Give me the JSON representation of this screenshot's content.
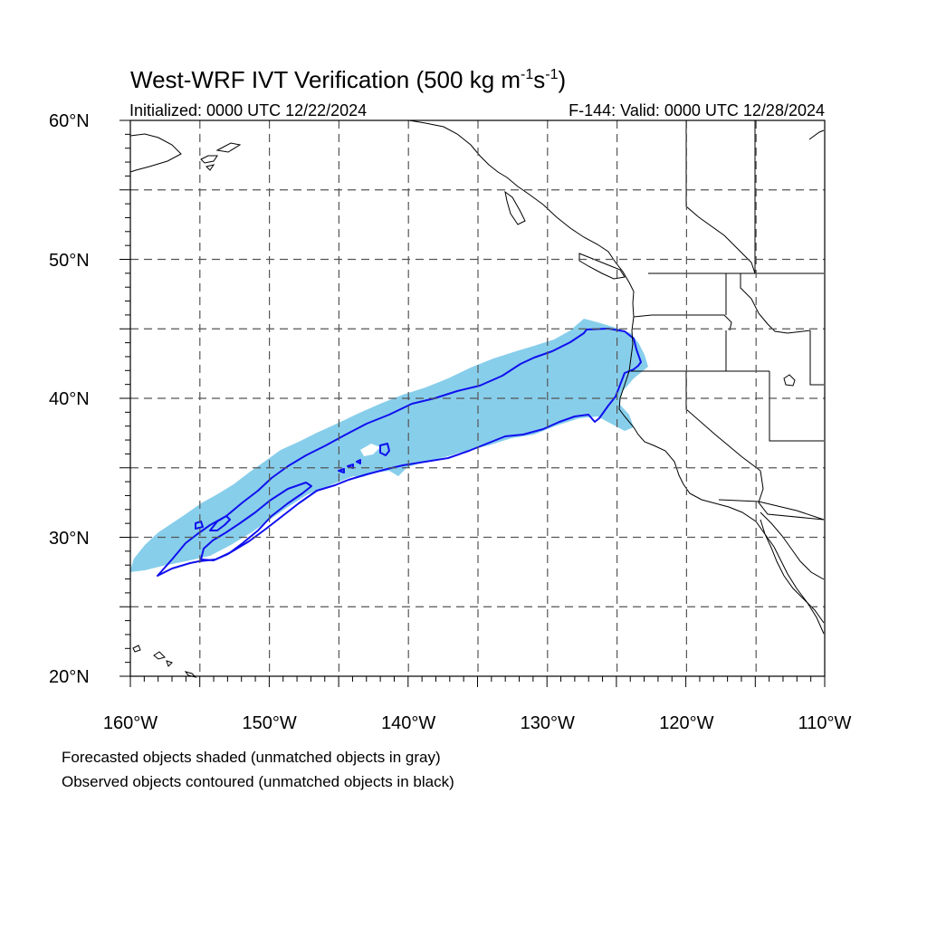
{
  "title": {
    "main": "West-WRF IVT Verification (500 kg m",
    "sup1": "-1",
    "mid": "s",
    "sup2": "-1",
    "end": ")"
  },
  "initialized": "Initialized: 0000 UTC 12/22/2024",
  "valid": "F-144: Valid: 0000 UTC 12/28/2024",
  "lat_labels": [
    "60°N",
    "50°N",
    "40°N",
    "30°N",
    "20°N"
  ],
  "lon_labels": [
    "160°W",
    "150°W",
    "140°W",
    "130°W",
    "120°W",
    "110°W"
  ],
  "legend_note_1": "Forecasted objects shaded (unmatched objects in gray)",
  "legend_note_2": "Observed objects contoured (unmatched objects in black)",
  "colors": {
    "forecast_fill": "#87ceeb",
    "observed_contour": "#1010ee",
    "coastline": "#000000",
    "grid": "#555555"
  },
  "map": {
    "projection": "cylindrical equidistant",
    "lon_range": [
      -160,
      -110
    ],
    "lat_range": [
      20,
      60
    ],
    "grid_lines": "dashed every 5 degrees"
  }
}
